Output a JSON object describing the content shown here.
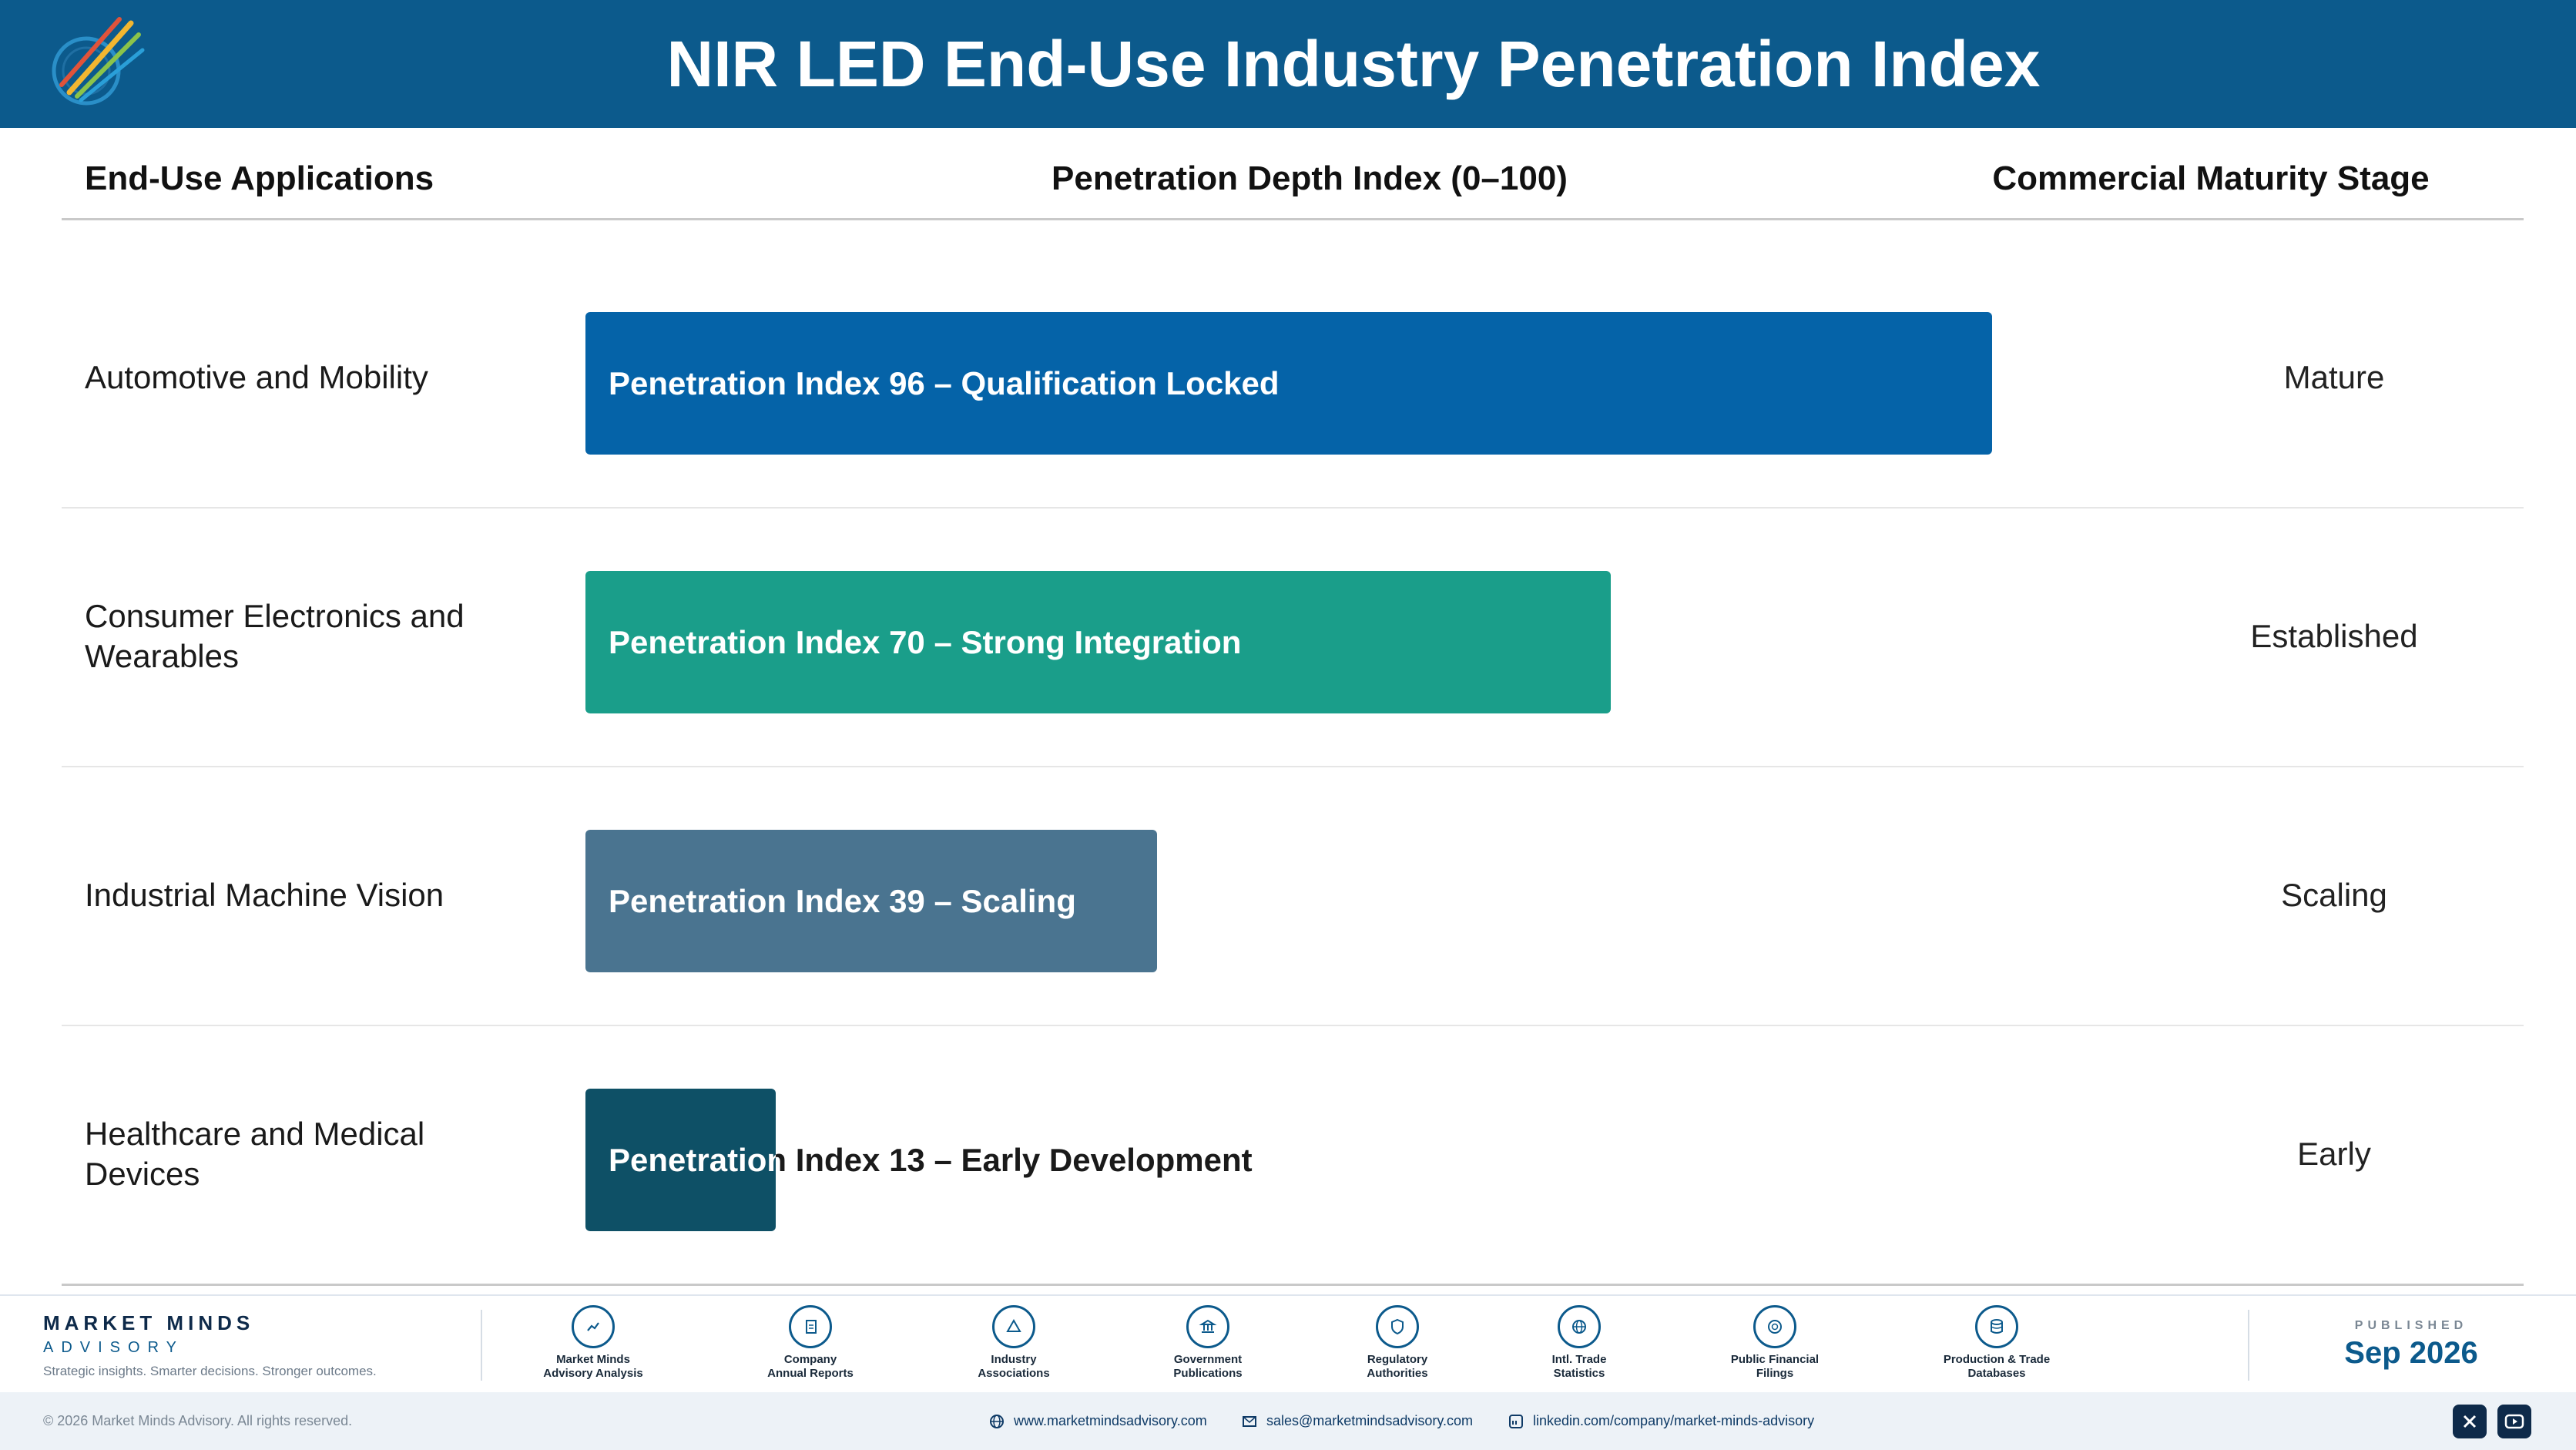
{
  "header": {
    "title": "NIR LED End-Use Industry Penetration Index"
  },
  "columns": {
    "applications": "End-Use Applications",
    "index": "Penetration Depth Index (0–100)",
    "stage": "Commercial Maturity Stage"
  },
  "chart_data": {
    "type": "bar",
    "orientation": "horizontal",
    "xlim": [
      0,
      100
    ],
    "categories": [
      "Automotive and Mobility",
      "Consumer Electronics and Wearables",
      "Industrial Machine Vision",
      "Healthcare and Medical Devices"
    ],
    "values": [
      96,
      70,
      39,
      13
    ],
    "bar_labels": [
      "Penetration Index 96 – Qualification Locked",
      "Penetration Index 70 – Strong Integration",
      "Penetration Index 39 – Scaling",
      "Penetration Index 13 – Early Development"
    ],
    "stages": [
      "Mature",
      "Established",
      "Scaling",
      "Early"
    ],
    "colors": [
      "#0563a8",
      "#1a9e8a",
      "#4a7490",
      "#0e5066"
    ]
  },
  "footer": {
    "brand_name": "MARKET MINDS",
    "brand_sub": "ADVISORY",
    "brand_tagline": "Strategic insights. Smarter decisions. Stronger outcomes.",
    "sources": [
      {
        "line1": "Market Minds",
        "line2": "Advisory Analysis",
        "icon": "chart-line-icon"
      },
      {
        "line1": "Company",
        "line2": "Annual Reports",
        "icon": "document-icon"
      },
      {
        "line1": "Industry",
        "line2": "Associations",
        "icon": "network-icon"
      },
      {
        "line1": "Government",
        "line2": "Publications",
        "icon": "building-icon"
      },
      {
        "line1": "Regulatory",
        "line2": "Authorities",
        "icon": "shield-icon"
      },
      {
        "line1": "Intl. Trade",
        "line2": "Statistics",
        "icon": "globe-icon"
      },
      {
        "line1": "Public Financial",
        "line2": "Filings",
        "icon": "coin-icon"
      },
      {
        "line1": "Production & Trade",
        "line2": "Databases",
        "icon": "database-icon"
      }
    ],
    "published_label": "PUBLISHED",
    "published_date": "Sep 2026",
    "copyright": "© 2026 Market Minds Advisory. All rights reserved.",
    "website": "www.marketmindsadvisory.com",
    "email": "sales@marketmindsadvisory.com",
    "linkedin": "linkedin.com/company/market-minds-advisory"
  }
}
